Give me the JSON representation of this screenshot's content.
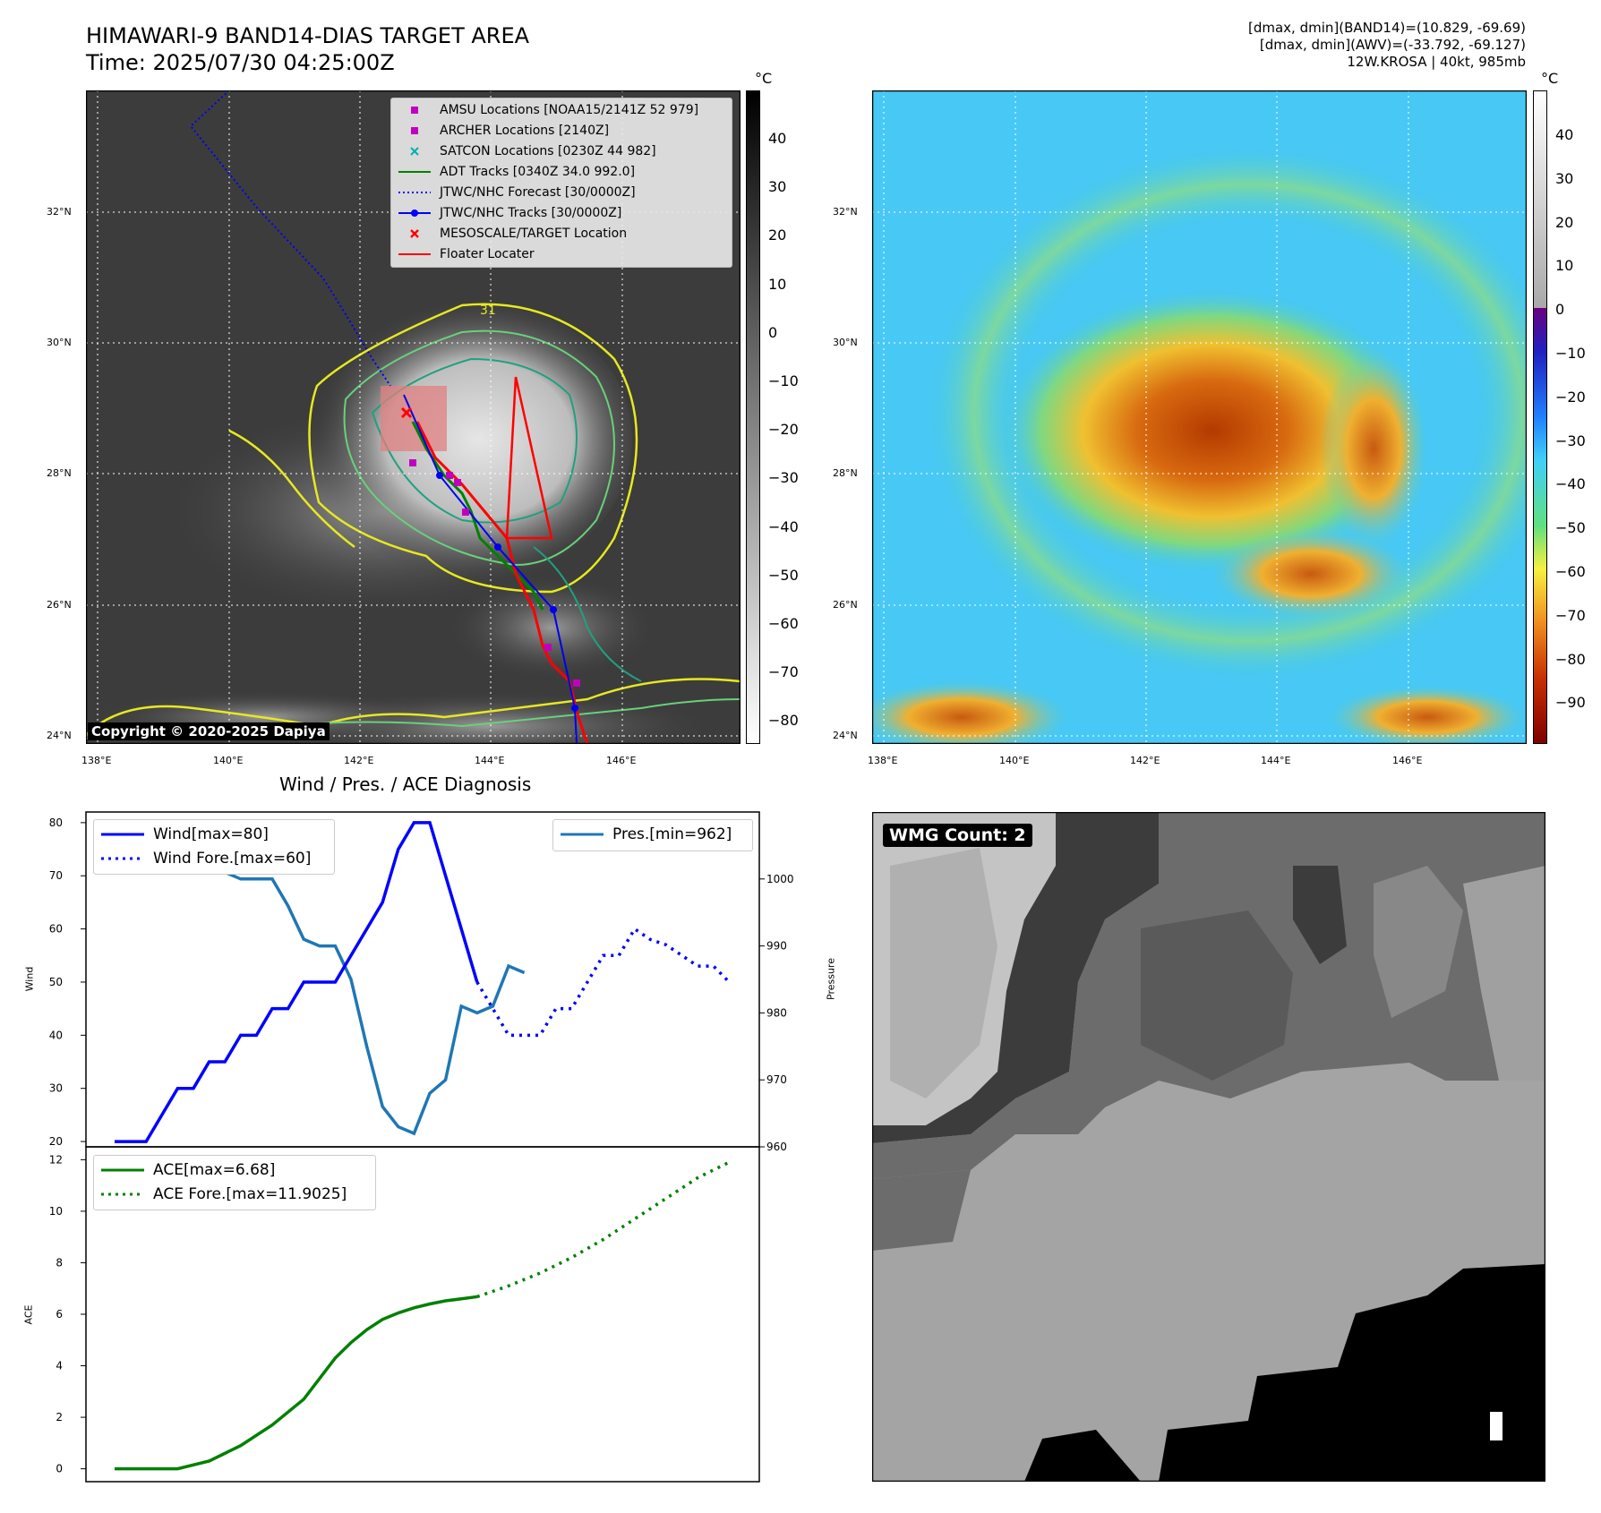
{
  "header": {
    "title_line1": "HIMAWARI-9 BAND14-DIAS TARGET AREA",
    "title_line2": "Time: 2025/07/30 04:25:00Z",
    "right_line1": "[dmax, dmin](BAND14)=(10.829, -69.69)",
    "right_line2": "[dmax, dmin](AWV)=(-33.792, -69.127)",
    "right_line3": "12W.KROSA | 40kt, 985mb"
  },
  "map": {
    "lon_ticks": [
      "138°E",
      "140°E",
      "142°E",
      "144°E",
      "146°E"
    ],
    "lat_ticks": [
      "32°N",
      "30°N",
      "28°N",
      "26°N",
      "24°N"
    ],
    "copyright": "Copyright © 2020-2025 Dapiya",
    "colorbar_unit": "°C",
    "colorbar1_ticks": [
      "40",
      "30",
      "20",
      "10",
      "0",
      "−10",
      "−20",
      "−30",
      "−40",
      "−50",
      "−60",
      "−70",
      "−80"
    ],
    "colorbar2_ticks": [
      "40",
      "30",
      "20",
      "10",
      "0",
      "−10",
      "−20",
      "−30",
      "−40",
      "−50",
      "−60",
      "−70",
      "−80",
      "−90"
    ],
    "legend": [
      {
        "label": "AMSU Locations [NOAA15/2141Z 52 979]",
        "kind": "square",
        "color": "#c000c0"
      },
      {
        "label": "ARCHER Locations [2140Z]",
        "kind": "square",
        "color": "#c000c0"
      },
      {
        "label": "SATCON Locations [0230Z 44 982]",
        "kind": "x",
        "color": "#00b0b0"
      },
      {
        "label": "ADT Tracks [0340Z 34.0 992.0]",
        "kind": "line",
        "color": "#008000"
      },
      {
        "label": "JTWC/NHC Forecast [30/0000Z]",
        "kind": "dotted",
        "color": "#0000ff"
      },
      {
        "label": "JTWC/NHC Tracks [30/0000Z]",
        "kind": "linedot",
        "color": "#0000ff"
      },
      {
        "label": "MESOSCALE/TARGET Location",
        "kind": "x",
        "color": "#ff0000"
      },
      {
        "label": "Floater Locater",
        "kind": "line",
        "color": "#ff0000"
      }
    ],
    "contour_label": "31"
  },
  "diagnosis": {
    "title": "Wind / Pres. / ACE Diagnosis",
    "wind_ylabel": "Wind",
    "pres_ylabel": "Pressure",
    "ace_ylabel": "ACE",
    "legend_wind": "Wind[max=80]",
    "legend_wind_fore": "Wind Fore.[max=60]",
    "legend_pres": "Pres.[min=962]",
    "legend_ace": "ACE[max=6.68]",
    "legend_ace_fore": "ACE Fore.[max=11.9025]"
  },
  "wmg": {
    "label": "WMG Count: 2"
  },
  "chart_data": [
    {
      "type": "line",
      "panel": "wind-pressure",
      "x_range": [
        0,
        40
      ],
      "ylim_wind": [
        19,
        82
      ],
      "ylim_pres": [
        960,
        1010
      ],
      "wind_ticks": [
        20,
        30,
        40,
        50,
        60,
        70,
        80
      ],
      "pres_ticks": [
        960,
        970,
        980,
        990,
        1000
      ],
      "series": [
        {
          "name": "Wind[max=80]",
          "axis": "wind",
          "x": [
            0,
            1,
            2,
            3,
            4,
            5,
            6,
            7,
            8,
            9,
            10,
            11,
            12,
            13,
            14,
            15,
            16,
            17,
            18,
            19,
            20,
            21,
            22,
            23
          ],
          "values": [
            20,
            20,
            20,
            25,
            30,
            30,
            35,
            35,
            40,
            40,
            45,
            45,
            50,
            50,
            50,
            55,
            60,
            65,
            75,
            80,
            80,
            70,
            60,
            50
          ]
        },
        {
          "name": "Wind Fore.[max=60]",
          "axis": "wind",
          "x": [
            23,
            24,
            25,
            26,
            27,
            28,
            29,
            30,
            31,
            32,
            33,
            34,
            35,
            36,
            37,
            38,
            39
          ],
          "values": [
            50,
            45,
            40,
            40,
            40,
            45,
            45,
            50,
            55,
            55,
            60,
            58,
            57,
            55,
            53,
            53,
            50
          ]
        },
        {
          "name": "Pres.[min=962]",
          "axis": "pres",
          "x": [
            0,
            1,
            2,
            3,
            4,
            5,
            6,
            7,
            8,
            9,
            10,
            11,
            12,
            13,
            14,
            15,
            16,
            17,
            18,
            19,
            20,
            21,
            22,
            23,
            24,
            25,
            26
          ],
          "values": [
            1007,
            1007,
            1007,
            1005,
            1005,
            1004,
            1003,
            1001,
            1000,
            1000,
            1000,
            996,
            991,
            990,
            990,
            985,
            975,
            966,
            963,
            962,
            968,
            970,
            981,
            980,
            981,
            987,
            986
          ]
        }
      ]
    },
    {
      "type": "line",
      "panel": "ace",
      "x_range": [
        0,
        40
      ],
      "ylim": [
        -0.5,
        12.5
      ],
      "y_ticks": [
        0,
        2,
        4,
        6,
        8,
        10,
        12
      ],
      "series": [
        {
          "name": "ACE[max=6.68]",
          "x": [
            0,
            2,
            4,
            6,
            8,
            10,
            12,
            14,
            15,
            16,
            17,
            18,
            19,
            20,
            21,
            22,
            23
          ],
          "values": [
            0,
            0,
            0,
            0.3,
            0.9,
            1.7,
            2.7,
            4.3,
            4.9,
            5.4,
            5.8,
            6.05,
            6.25,
            6.4,
            6.52,
            6.6,
            6.68
          ]
        },
        {
          "name": "ACE Fore.[max=11.9025]",
          "x": [
            23,
            25,
            27,
            29,
            31,
            33,
            35,
            37,
            39
          ],
          "values": [
            6.68,
            7.1,
            7.6,
            8.2,
            8.9,
            9.7,
            10.5,
            11.3,
            11.9025
          ]
        }
      ]
    }
  ]
}
